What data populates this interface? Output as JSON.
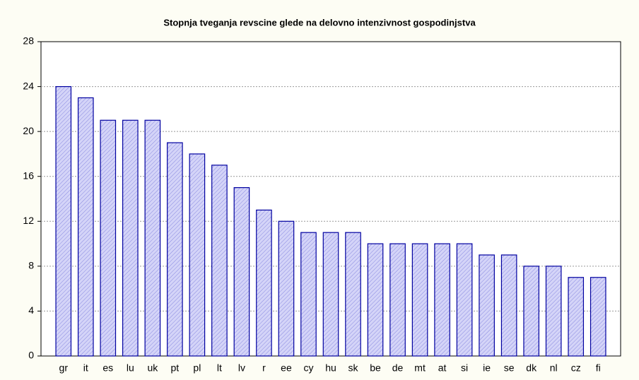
{
  "chart_data": {
    "type": "bar",
    "title": "Stopnja tveganja revscine glede na delovno intenzivnost gospodinjstva",
    "categories": [
      "gr",
      "it",
      "es",
      "lu",
      "uk",
      "pt",
      "pl",
      "lt",
      "lv",
      "r",
      "ee",
      "cy",
      "hu",
      "sk",
      "be",
      "de",
      "mt",
      "at",
      "si",
      "ie",
      "se",
      "dk",
      "nl",
      "cz",
      "fi"
    ],
    "values": [
      24,
      23,
      21,
      21,
      21,
      19,
      18,
      17,
      15,
      13,
      12,
      11,
      11,
      11,
      10,
      10,
      10,
      10,
      10,
      9,
      9,
      8,
      8,
      7,
      7
    ],
    "color": "#c8c8f5",
    "ylim": [
      0,
      28
    ],
    "yticks": [
      0,
      4,
      8,
      12,
      16,
      20,
      24,
      28
    ],
    "grid": true
  }
}
